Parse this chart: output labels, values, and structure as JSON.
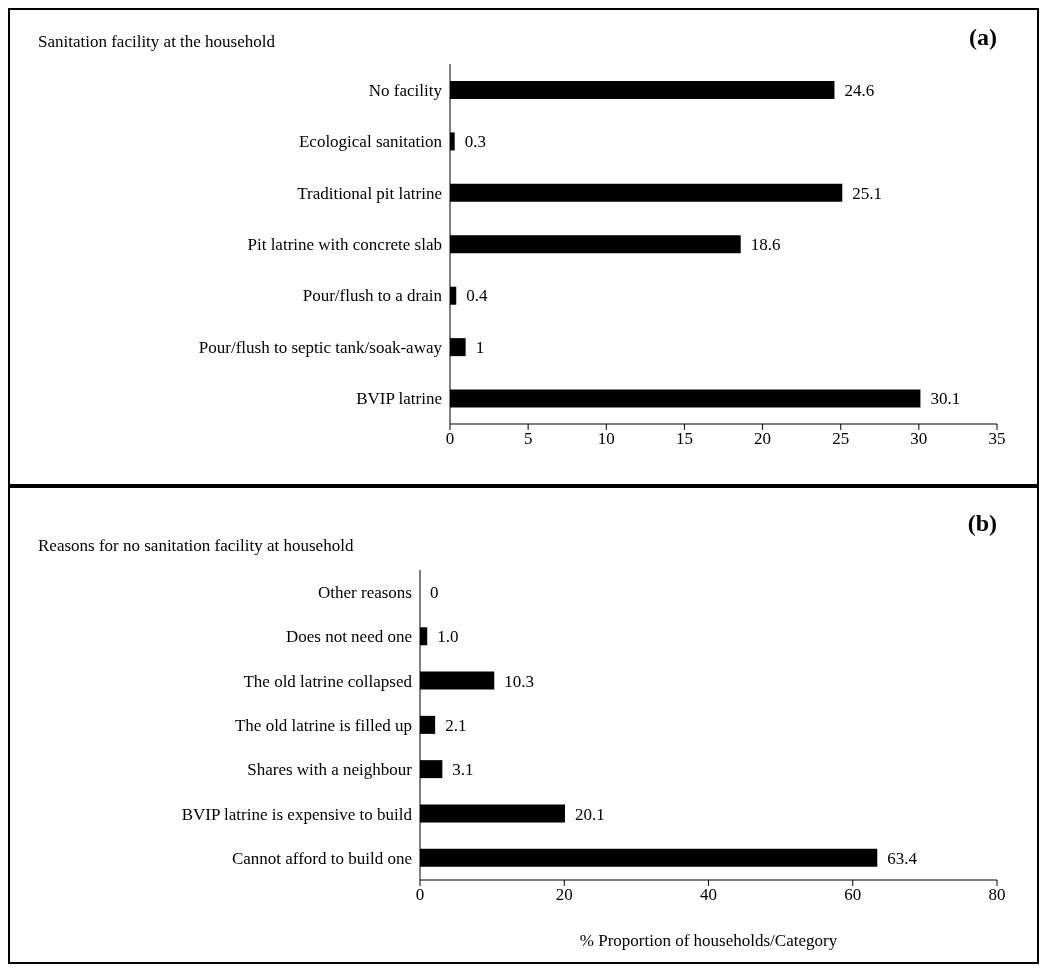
{
  "chart_data": [
    {
      "type": "bar",
      "orientation": "horizontal",
      "title": "Sanitation facility at the household",
      "annotations": [
        "(a)"
      ],
      "categories": [
        "No facility",
        "Ecological sanitation",
        "Traditional pit latrine",
        "Pit latrine with concrete slab",
        "Pour/flush to a drain",
        "Pour/flush to septic tank/soak-away",
        "BVIP latrine"
      ],
      "values": [
        24.6,
        0.3,
        25.1,
        18.6,
        0.4,
        1,
        30.1
      ],
      "color": "#000000",
      "xlim": [
        0,
        35
      ],
      "xticks": [
        0,
        5,
        10,
        15,
        20,
        25,
        30,
        35
      ],
      "data_labels": true,
      "grid": false
    },
    {
      "type": "bar",
      "orientation": "horizontal",
      "title": "Reasons for no sanitation facility at household",
      "annotations": [
        "(b)"
      ],
      "xlabel": "% Proportion of households/Category",
      "categories": [
        "Other reasons",
        "Does not need one",
        "The old latrine collapsed",
        "The old latrine is filled up",
        "Shares with a neighbour",
        "BVIP latrine is expensive to build",
        "Cannot afford to build one"
      ],
      "values": [
        0,
        1.0,
        10.3,
        2.1,
        3.1,
        20.1,
        63.4
      ],
      "value_labels": [
        "0",
        "1.0",
        "10.3",
        "2.1",
        "3.1",
        "20.1",
        "63.4"
      ],
      "color": "#000000",
      "xlim": [
        0,
        80
      ],
      "xticks": [
        0,
        20,
        40,
        60,
        80
      ],
      "grid": false
    }
  ]
}
